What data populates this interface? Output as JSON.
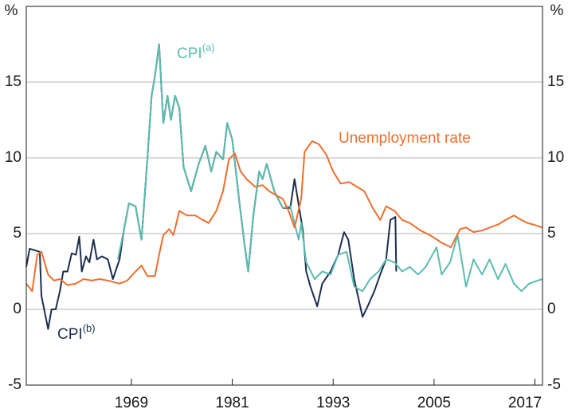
{
  "chart_data": {
    "type": "line",
    "y_label": "%",
    "xlim": [
      1956.5,
      2017.9
    ],
    "xticks": [
      1969,
      1981,
      1993,
      2005,
      2017
    ],
    "ylim": [
      -5,
      20
    ],
    "yticks": [
      -5,
      0,
      5,
      10,
      15
    ],
    "y2lim": [
      -5,
      20
    ],
    "y2ticks": [
      -5,
      0,
      5,
      10,
      15
    ],
    "grid": true,
    "series": [
      {
        "name": "CPI(b)",
        "color": "#1c2e4f",
        "x": [
          1956.5,
          1956.9,
          1958.1,
          1958.3,
          1959.1,
          1959.5,
          1960.0,
          1960.5,
          1960.9,
          1961.4,
          1961.9,
          1962.4,
          1962.8,
          1963.1,
          1963.6,
          1964.0,
          1964.5,
          1964.9,
          1965.5,
          1966.2,
          1966.8,
          1967.6,
          1968.1,
          1968.7,
          1969.5,
          1970.2,
          1970.9,
          1971.4,
          1971.8,
          1972.3,
          1972.8,
          1973.3,
          1973.7,
          1974.2,
          1974.7,
          1975.2,
          1976.1,
          1977.0,
          1977.8,
          1978.5,
          1979.1,
          1979.9,
          1980.4,
          1981.0,
          1981.8,
          1982.5,
          1982.9,
          1983.5,
          1984.2,
          1984.6,
          1985.1,
          1986.0,
          1987.0,
          1987.9,
          1988.4,
          1989.4,
          1989.8,
          1990.3,
          1991.1,
          1991.7,
          1992.7,
          1993.6,
          1994.3,
          1994.8,
          1995.5,
          1996.5,
          1997.1,
          1997.9,
          1998.6,
          1999.3,
          1999.8,
          2000.4,
          2000.5
        ],
        "values": [
          2.8,
          4.0,
          3.8,
          0.9,
          -1.3,
          0,
          0,
          1.2,
          2.5,
          2.5,
          3.7,
          3.6,
          4.8,
          2.5,
          3.5,
          3.1,
          4.6,
          3.3,
          3.5,
          3.3,
          2.0,
          3.3,
          5.2,
          7.0,
          6.8,
          4.6,
          9.9,
          14.1,
          15.4,
          17.5,
          12.3,
          14.1,
          12.5,
          14.1,
          13.3,
          9.4,
          7.8,
          9.6,
          10.8,
          9.1,
          10.4,
          9.9,
          12.3,
          11.2,
          7.3,
          4.1,
          2.5,
          6.2,
          9.1,
          8.6,
          9.6,
          7.8,
          6.7,
          6.7,
          8.6,
          5.2,
          2.5,
          1.5,
          0.2,
          1.7,
          2.5,
          3.6,
          5.1,
          4.6,
          2.0,
          -0.5,
          0.2,
          1.2,
          2.3,
          3.3,
          5.9,
          6.1,
          2.5
        ]
      },
      {
        "name": "CPI(a)",
        "color": "#5bbcb0",
        "x": [
          1967.4,
          1968.1,
          1968.7,
          1969.5,
          1970.2,
          1970.9,
          1971.4,
          1971.8,
          1972.3,
          1972.8,
          1973.3,
          1973.7,
          1974.2,
          1974.7,
          1975.2,
          1976.1,
          1977.0,
          1977.8,
          1978.5,
          1979.1,
          1979.9,
          1980.4,
          1981.0,
          1981.8,
          1982.5,
          1982.9,
          1983.5,
          1984.2,
          1984.6,
          1985.1,
          1986.0,
          1987.0,
          1987.9,
          1988.9,
          1989.2,
          1989.8,
          1990.8,
          1991.7,
          1992.7,
          1993.6,
          1994.6,
          1995.5,
          1996.5,
          1997.4,
          1998.4,
          1999.3,
          2000.3,
          2001.2,
          2002.1,
          2003.1,
          2004.0,
          2005.3,
          2005.9,
          2006.9,
          2007.8,
          2008.8,
          2009.7,
          2010.7,
          2011.6,
          2012.6,
          2013.5,
          2014.5,
          2015.4,
          2016.3,
          2017.3,
          2017.9
        ],
        "values": [
          3.3,
          5.2,
          7.0,
          6.8,
          4.6,
          9.9,
          14.1,
          15.4,
          17.5,
          12.3,
          14.1,
          12.5,
          14.1,
          13.3,
          9.4,
          7.8,
          9.6,
          10.8,
          9.1,
          10.4,
          9.9,
          12.3,
          11.2,
          7.3,
          4.1,
          2.5,
          6.2,
          9.1,
          8.6,
          9.6,
          7.8,
          6.7,
          6.8,
          4.6,
          5.7,
          3.1,
          2.0,
          2.5,
          2.3,
          3.6,
          3.8,
          1.5,
          1.2,
          2.0,
          2.5,
          3.3,
          3.1,
          2.5,
          2.8,
          2.3,
          2.8,
          4.1,
          2.3,
          3.1,
          4.9,
          1.5,
          3.3,
          2.3,
          3.3,
          2.0,
          3.0,
          1.7,
          1.2,
          1.7,
          1.9,
          2.0
        ]
      },
      {
        "name": "Unemployment rate",
        "color": "#ec6f2d",
        "x": [
          1956.5,
          1957.2,
          1957.8,
          1958.3,
          1959.1,
          1959.8,
          1960.5,
          1961.4,
          1962.4,
          1963.3,
          1964.3,
          1965.2,
          1966.2,
          1967.6,
          1968.5,
          1969.5,
          1970.2,
          1970.9,
          1971.8,
          1972.3,
          1972.8,
          1973.5,
          1974.0,
          1974.7,
          1975.6,
          1976.6,
          1977.5,
          1978.2,
          1979.1,
          1979.9,
          1980.6,
          1981.3,
          1982.0,
          1982.7,
          1983.7,
          1984.6,
          1985.4,
          1986.3,
          1987.0,
          1987.7,
          1988.4,
          1989.2,
          1989.6,
          1990.5,
          1991.3,
          1992.2,
          1993.0,
          1993.9,
          1994.9,
          1995.8,
          1996.7,
          1997.7,
          1998.6,
          1999.3,
          2000.3,
          2001.2,
          2002.1,
          2003.4,
          2004.5,
          2005.9,
          2007.0,
          2008.1,
          2008.8,
          2009.7,
          2010.7,
          2011.6,
          2012.6,
          2013.5,
          2014.5,
          2015.4,
          2016.1,
          2016.8,
          2017.9
        ],
        "values": [
          1.7,
          1.2,
          3.6,
          3.8,
          2.3,
          1.9,
          2.0,
          1.6,
          1.7,
          2.0,
          1.9,
          2.0,
          1.9,
          1.7,
          1.9,
          2.5,
          2.9,
          2.2,
          2.2,
          3.6,
          4.9,
          5.3,
          4.9,
          6.5,
          6.2,
          6.2,
          5.9,
          5.7,
          6.5,
          7.8,
          9.9,
          10.3,
          9.1,
          8.6,
          8.1,
          8.2,
          7.8,
          7.5,
          7.3,
          6.5,
          5.4,
          7.3,
          10.4,
          11.1,
          10.9,
          10.2,
          9.1,
          8.3,
          8.4,
          8.1,
          7.8,
          6.7,
          5.9,
          6.8,
          6.5,
          5.9,
          5.7,
          5.2,
          4.9,
          4.4,
          4.1,
          5.3,
          5.4,
          5.1,
          5.2,
          5.4,
          5.6,
          5.9,
          6.2,
          5.9,
          5.7,
          5.6,
          5.4
        ]
      }
    ]
  }
}
